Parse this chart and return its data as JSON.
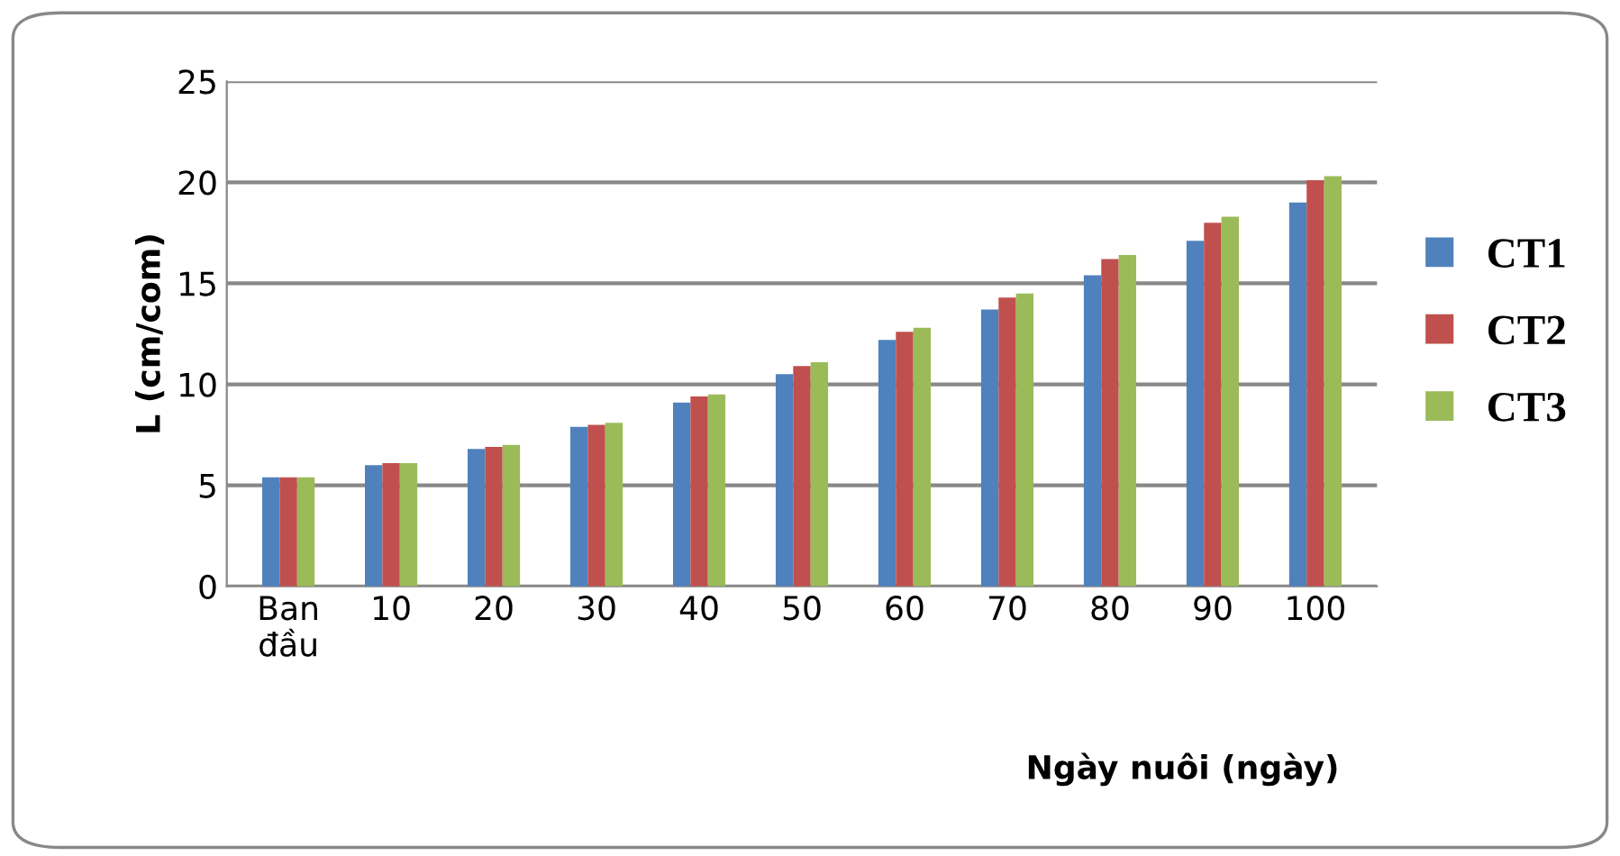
{
  "chart_data": {
    "type": "bar",
    "xlabel": "Ngày nuôi (ngày)",
    "ylabel": "L (cm/com)",
    "categories": [
      "Ban\nđầu",
      "10",
      "20",
      "30",
      "40",
      "50",
      "60",
      "70",
      "80",
      "90",
      "100"
    ],
    "series": [
      {
        "name": "CT1",
        "color": "#4f81bd",
        "values": [
          5.4,
          6.0,
          6.8,
          7.9,
          9.1,
          10.5,
          12.2,
          13.7,
          15.4,
          17.1,
          19.0
        ]
      },
      {
        "name": "CT2",
        "color": "#c0504d",
        "values": [
          5.4,
          6.1,
          6.9,
          8.0,
          9.4,
          10.9,
          12.6,
          14.3,
          16.2,
          18.0,
          20.1
        ]
      },
      {
        "name": "CT3",
        "color": "#9bbb59",
        "values": [
          5.4,
          6.1,
          7.0,
          8.1,
          9.5,
          11.1,
          12.8,
          14.5,
          16.4,
          18.3,
          20.3
        ]
      }
    ],
    "ylim": [
      0,
      25
    ],
    "yticks": [
      0,
      5,
      10,
      15,
      20,
      25
    ],
    "grid": "y",
    "legend": "right"
  }
}
